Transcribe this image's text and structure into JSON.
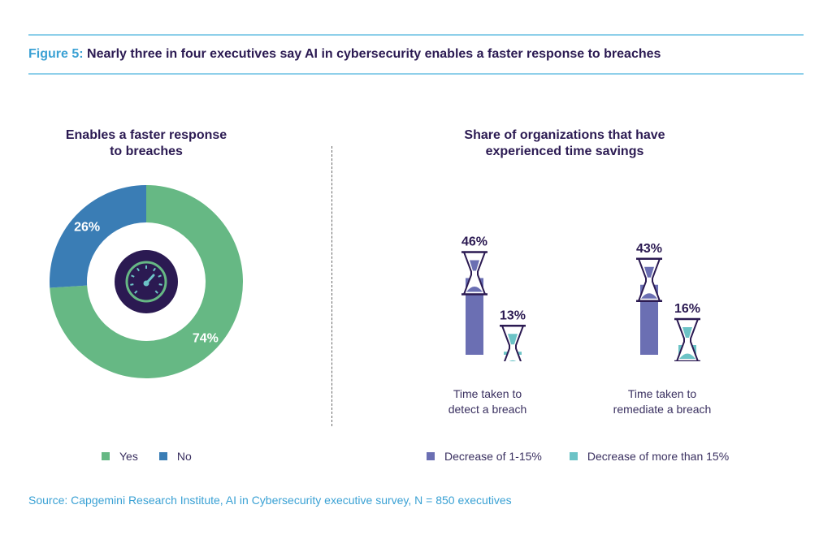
{
  "figure": {
    "label": "Figure 5:",
    "title": "Nearly three in four executives say AI in cybersecurity enables a faster response to breaches"
  },
  "colors": {
    "yes": "#66b884",
    "no": "#3a7db5",
    "decrease_1_15": "#6b6fb3",
    "decrease_more_15": "#6cc3c6",
    "dark": "#2b1a52",
    "accent": "#3aa1d4"
  },
  "icons": [
    "speedometer-icon",
    "hourglass-icon"
  ],
  "chart_data": [
    {
      "type": "pie",
      "title": "Enables a faster response to breaches",
      "title_lines": [
        "Enables a faster response",
        "to breaches"
      ],
      "slices": [
        {
          "label": "Yes",
          "value": 74,
          "text": "74%"
        },
        {
          "label": "No",
          "value": 26,
          "text": "26%"
        }
      ],
      "legend": [
        "Yes",
        "No"
      ],
      "legend_position": "bottom"
    },
    {
      "type": "bar",
      "title": "Share of organizations that have experienced time savings",
      "title_lines": [
        "Share of organizations that have",
        "experienced time savings"
      ],
      "categories": [
        "Time taken to detect a breach",
        "Time taken to remediate a breach"
      ],
      "category_lines": [
        [
          "Time taken to",
          "detect a breach"
        ],
        [
          "Time taken to",
          "remediate a breach"
        ]
      ],
      "series": [
        {
          "name": "Decrease of 1-15%",
          "values": [
            46,
            43
          ],
          "labels": [
            "46%",
            "43%"
          ]
        },
        {
          "name": "Decrease of more than 15%",
          "values": [
            13,
            16
          ],
          "labels": [
            "13%",
            "16%"
          ]
        }
      ],
      "legend_position": "bottom"
    }
  ],
  "source": "Source: Capgemini Research Institute, AI in Cybersecurity executive survey, N = 850 executives"
}
